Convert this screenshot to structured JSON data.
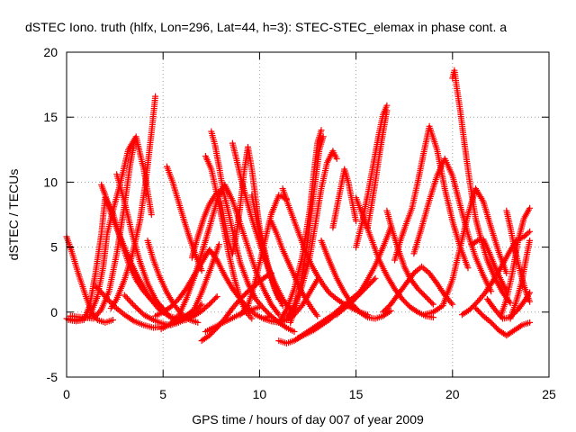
{
  "chart_data": {
    "type": "scatter",
    "title": "dSTEC Iono. truth (hlfx, Lon=296, Lat=44, h=3): STEC-STEC_elemax in phase cont. a",
    "xlabel": "GPS time / hours of day 007 of year 2009",
    "ylabel": "dSTEC  / TECUs",
    "xlim": [
      0,
      25
    ],
    "ylim": [
      -5,
      20
    ],
    "xticks": [
      0,
      5,
      10,
      15,
      20,
      25
    ],
    "yticks": [
      -5,
      0,
      5,
      10,
      15,
      20
    ],
    "xtick_labels": [
      "0",
      "5",
      "10",
      "15",
      "20",
      "25"
    ],
    "ytick_labels": [
      "-5",
      "0",
      "5",
      "10",
      "15",
      "20"
    ],
    "grid": true,
    "grid_style": "dotted",
    "marker": "+",
    "series_color": "#ff0000",
    "series": [
      {
        "x": [
          0.0,
          0.3,
          0.6,
          1.0,
          1.3,
          1.6,
          2.0,
          2.4
        ],
        "y": [
          5.8,
          4.5,
          3.0,
          1.2,
          0.0,
          -0.6,
          -0.8,
          -0.6
        ]
      },
      {
        "x": [
          0.1,
          0.5,
          0.9,
          1.2,
          1.5,
          1.8,
          2.0,
          2.4,
          2.8,
          3.2,
          3.6,
          4.0,
          4.5,
          5.0
        ],
        "y": [
          -0.6,
          -0.7,
          -0.6,
          0.5,
          3.0,
          6.0,
          8.8,
          7.6,
          5.6,
          3.8,
          2.5,
          1.6,
          0.8,
          0.3
        ]
      },
      {
        "x": [
          0.0,
          0.6,
          1.2,
          1.6,
          1.9,
          2.1,
          2.4,
          2.8,
          3.2,
          3.6,
          4.0,
          4.4
        ],
        "y": [
          -0.5,
          -0.6,
          -0.3,
          1.2,
          3.5,
          6.0,
          7.8,
          10.0,
          12.5,
          13.5,
          11.0,
          7.5
        ]
      },
      {
        "x": [
          0.2,
          0.8,
          1.4,
          1.8,
          2.2,
          2.6,
          3.0,
          3.3,
          3.5
        ],
        "y": [
          -0.3,
          -0.4,
          -0.5,
          0.2,
          1.6,
          4.5,
          8.2,
          11.4,
          13.0
        ]
      },
      {
        "x": [
          1.8,
          2.0,
          2.3,
          2.8,
          3.3,
          3.8,
          4.3,
          4.8,
          5.3,
          5.8,
          6.2,
          6.6,
          7.0,
          7.5,
          7.9
        ],
        "y": [
          9.8,
          9.0,
          7.6,
          5.7,
          3.9,
          2.4,
          1.1,
          0.2,
          -0.3,
          -0.5,
          -0.3,
          0.2,
          1.5,
          3.5,
          5.2
        ]
      },
      {
        "x": [
          1.5,
          2.0,
          2.5,
          3.0,
          3.5,
          4.0,
          4.5,
          5.0,
          5.5,
          6.0,
          6.5
        ],
        "y": [
          2.0,
          1.2,
          0.4,
          -0.2,
          -0.7,
          -1.0,
          -1.2,
          -1.1,
          -0.9,
          -0.5,
          0.0
        ]
      },
      {
        "x": [
          2.3,
          2.6,
          3.0,
          3.4,
          3.8,
          4.1,
          4.4,
          4.6
        ],
        "y": [
          0.3,
          1.0,
          2.5,
          4.4,
          7.0,
          10.0,
          13.8,
          16.6
        ]
      },
      {
        "x": [
          2.6,
          3.0,
          3.4,
          3.8,
          4.2,
          4.6,
          5.0,
          5.4,
          5.8,
          6.2,
          6.6,
          7.0,
          7.4,
          7.8
        ],
        "y": [
          10.6,
          8.5,
          6.0,
          3.9,
          2.2,
          1.0,
          0.2,
          -0.4,
          -0.7,
          -0.6,
          -0.3,
          0.1,
          0.6,
          1.2
        ]
      },
      {
        "x": [
          3.0,
          3.5,
          4.0,
          4.5,
          5.0,
          5.4,
          5.8,
          6.2,
          6.6,
          7.0
        ],
        "y": [
          1.3,
          0.5,
          -0.2,
          -0.6,
          -0.9,
          -1.0,
          -0.8,
          -0.5,
          0.0,
          0.6
        ]
      },
      {
        "x": [
          4.2,
          4.5,
          4.8,
          5.2,
          5.6,
          6.0,
          6.4,
          6.8
        ],
        "y": [
          5.5,
          4.0,
          2.8,
          1.5,
          0.5,
          -0.2,
          -0.6,
          -0.8
        ]
      },
      {
        "x": [
          4.6,
          5.0,
          5.4,
          5.8,
          6.2,
          6.6,
          7.0,
          7.4,
          7.8,
          8.2,
          8.6,
          9.0,
          9.4,
          9.8,
          10.2,
          10.6
        ],
        "y": [
          -0.3,
          0.0,
          0.4,
          1.0,
          1.8,
          2.8,
          3.8,
          4.8,
          4.0,
          2.8,
          1.8,
          1.0,
          0.3,
          -0.2,
          -0.5,
          -0.3
        ]
      },
      {
        "x": [
          5.2,
          5.5,
          5.8,
          6.1,
          6.4,
          6.7,
          7.0
        ],
        "y": [
          11.2,
          10.0,
          8.5,
          7.0,
          5.6,
          4.3,
          3.2
        ]
      },
      {
        "x": [
          4.9,
          5.3,
          5.8,
          6.2,
          6.6,
          7.0,
          7.4,
          7.8,
          8.2,
          8.6,
          9.0,
          9.4,
          9.8,
          10.2,
          10.6,
          11.0
        ],
        "y": [
          -1.3,
          -1.0,
          -0.3,
          1.0,
          2.6,
          4.5,
          6.5,
          8.6,
          9.8,
          8.6,
          6.8,
          5.0,
          3.2,
          1.8,
          0.6,
          -0.2
        ]
      },
      {
        "x": [
          6.5,
          6.8,
          7.1,
          7.4,
          7.7,
          8.0
        ],
        "y": [
          4.2,
          5.8,
          7.2,
          8.3,
          9.0,
          9.4
        ]
      },
      {
        "x": [
          7.0,
          7.4,
          7.8,
          8.2,
          8.6,
          9.0,
          9.4,
          9.8,
          10.2,
          10.6
        ],
        "y": [
          -2.2,
          -1.8,
          -1.2,
          -0.5,
          0.3,
          1.0,
          1.6,
          2.1,
          2.6,
          3.0
        ]
      },
      {
        "x": [
          7.2,
          7.6,
          8.0,
          8.4,
          8.8,
          9.2,
          9.6,
          10.0
        ],
        "y": [
          -1.5,
          -1.2,
          -0.9,
          -0.6,
          -0.3,
          0.0,
          0.2,
          0.4
        ]
      },
      {
        "x": [
          7.5,
          7.7,
          7.9,
          8.1,
          8.4,
          8.7,
          9.0,
          9.4,
          9.8,
          10.2,
          10.6,
          11.0,
          11.4,
          11.8
        ],
        "y": [
          13.9,
          12.8,
          11.2,
          9.5,
          7.6,
          5.6,
          3.8,
          2.2,
          1.0,
          0.3,
          -0.3,
          -0.8,
          -1.2,
          -1.5
        ]
      },
      {
        "x": [
          7.2,
          7.5,
          7.8,
          8.1,
          8.4,
          8.7,
          9.0,
          9.3,
          9.6
        ],
        "y": [
          12.0,
          11.0,
          9.0,
          6.8,
          4.5,
          2.6,
          1.0,
          0.0,
          -0.5
        ]
      },
      {
        "x": [
          8.0,
          8.2,
          8.4,
          8.6,
          8.8,
          9.0,
          9.2,
          9.4,
          9.6,
          9.8,
          10.0,
          10.4,
          10.8,
          11.2
        ],
        "y": [
          8.5,
          6.8,
          5.4,
          4.5,
          6.0,
          8.2,
          10.8,
          12.7,
          11.0,
          8.7,
          6.5,
          3.8,
          1.8,
          0.5
        ]
      },
      {
        "x": [
          8.6,
          8.8,
          9.0,
          9.3,
          9.6,
          10.0,
          10.4,
          10.8,
          11.2,
          11.6
        ],
        "y": [
          13.0,
          11.8,
          10.5,
          8.8,
          7.2,
          5.3,
          3.6,
          2.2,
          1.0,
          0.2
        ]
      },
      {
        "x": [
          9.0,
          9.4,
          9.8,
          10.2,
          10.6,
          11.0,
          11.4
        ],
        "y": [
          -0.2,
          0.5,
          2.5,
          5.0,
          7.5,
          9.0,
          8.7
        ]
      },
      {
        "x": [
          9.6,
          9.8,
          10.0,
          10.2,
          10.4,
          10.6,
          10.8,
          11.0
        ],
        "y": [
          9.0,
          7.5,
          6.0,
          4.8,
          3.6,
          2.6,
          1.7,
          1.0
        ]
      },
      {
        "x": [
          10.2,
          10.6,
          11.0,
          11.4,
          11.8,
          12.2,
          12.6,
          13.0
        ],
        "y": [
          -0.5,
          -0.7,
          -0.8,
          -0.6,
          -0.2,
          0.5,
          1.5,
          2.5
        ]
      },
      {
        "x": [
          10.6,
          10.9,
          11.2,
          11.5,
          11.8,
          12.1,
          12.4,
          12.7,
          13.0
        ],
        "y": [
          7.0,
          6.0,
          4.8,
          3.8,
          2.8,
          1.8,
          1.0,
          0.3,
          -0.3
        ]
      },
      {
        "x": [
          11.2,
          11.5,
          11.8,
          12.1,
          12.4,
          12.7,
          13.0,
          13.3,
          13.6,
          14.0,
          14.4,
          14.8,
          15.2,
          15.6
        ],
        "y": [
          9.5,
          8.2,
          7.0,
          5.8,
          4.6,
          3.6,
          2.8,
          2.1,
          1.5,
          1.0,
          0.6,
          0.3,
          0.0,
          -0.2
        ]
      },
      {
        "x": [
          11.0,
          11.4,
          11.8,
          12.2,
          12.6,
          13.0,
          13.4,
          13.8,
          14.2,
          14.6,
          15.0,
          15.4
        ],
        "y": [
          -2.2,
          -2.4,
          -2.2,
          -1.8,
          -1.4,
          -1.0,
          -0.6,
          -0.2,
          0.3,
          0.8,
          1.3,
          1.8
        ]
      },
      {
        "x": [
          11.4,
          11.8,
          12.2,
          12.6,
          12.9,
          13.2,
          13.5,
          13.8,
          14.0
        ],
        "y": [
          -0.5,
          0.5,
          2.0,
          4.2,
          6.8,
          9.5,
          11.5,
          12.4,
          11.8
        ]
      },
      {
        "x": [
          11.0,
          11.4,
          11.8,
          12.2,
          12.6,
          12.8,
          13.0,
          13.2
        ],
        "y": [
          -0.8,
          0.2,
          1.8,
          4.2,
          7.8,
          10.5,
          13.0,
          14.0
        ]
      },
      {
        "x": [
          11.6,
          11.9,
          12.2,
          12.5,
          12.7,
          12.9,
          13.1,
          13.3
        ],
        "y": [
          -0.8,
          0.5,
          2.8,
          5.5,
          8.0,
          10.2,
          12.5,
          13.5
        ]
      },
      {
        "x": [
          12.0,
          12.4,
          12.8,
          13.2,
          13.6,
          14.0,
          14.4,
          14.8,
          15.2,
          15.6,
          16.0
        ],
        "y": [
          -2.0,
          -1.7,
          -1.4,
          -1.0,
          -0.6,
          -0.1,
          0.4,
          0.9,
          1.4,
          2.0,
          2.6
        ]
      },
      {
        "x": [
          13.2,
          13.6,
          14.0,
          14.4,
          14.8,
          15.2,
          15.6,
          16.0,
          16.4,
          16.8
        ],
        "y": [
          5.5,
          4.0,
          2.6,
          1.5,
          0.6,
          0.0,
          -0.4,
          -0.5,
          -0.3,
          0.1
        ]
      },
      {
        "x": [
          13.8,
          14.0,
          14.2,
          14.4,
          14.6,
          14.8,
          15.0
        ],
        "y": [
          6.5,
          8.0,
          9.5,
          11.0,
          10.0,
          8.5,
          7.0
        ]
      },
      {
        "x": [
          14.0,
          14.4,
          14.8,
          15.2,
          15.6,
          16.0,
          16.4,
          16.8
        ],
        "y": [
          -0.2,
          0.3,
          0.8,
          1.5,
          2.5,
          3.6,
          5.0,
          6.5
        ]
      },
      {
        "x": [
          15.0,
          15.3,
          15.6,
          15.9,
          16.2,
          16.6,
          17.0,
          17.4,
          17.8,
          18.2,
          18.6,
          19.0
        ],
        "y": [
          8.8,
          7.6,
          6.4,
          5.2,
          4.0,
          2.8,
          1.8,
          1.0,
          0.4,
          0.0,
          -0.3,
          -0.4
        ]
      },
      {
        "x": [
          15.0,
          15.3,
          15.6,
          15.9,
          16.2,
          16.4,
          16.6
        ],
        "y": [
          5.0,
          6.8,
          9.0,
          11.4,
          13.8,
          15.2,
          15.9
        ]
      },
      {
        "x": [
          15.6,
          15.8,
          16.0,
          16.2,
          16.4,
          16.6
        ],
        "y": [
          6.5,
          8.2,
          10.0,
          12.0,
          13.8,
          15.5
        ]
      },
      {
        "x": [
          16.6,
          16.9,
          17.2,
          17.5,
          17.8,
          18.2,
          18.6,
          19.0
        ],
        "y": [
          7.8,
          6.2,
          4.8,
          3.5,
          2.6,
          1.8,
          1.2,
          0.6
        ]
      },
      {
        "x": [
          16.4,
          16.8,
          17.2,
          17.6,
          18.0,
          18.4,
          18.8,
          19.2,
          19.6,
          20.0
        ],
        "y": [
          0.0,
          0.6,
          1.4,
          2.2,
          3.0,
          3.5,
          3.0,
          2.2,
          1.3,
          0.6
        ]
      },
      {
        "x": [
          17.0,
          17.3,
          17.6,
          17.9,
          18.2,
          18.5,
          18.8,
          19.2,
          19.6,
          20.0,
          20.4,
          20.8
        ],
        "y": [
          4.0,
          5.5,
          6.8,
          8.0,
          10.0,
          12.2,
          14.3,
          12.5,
          9.5,
          7.0,
          5.0,
          3.4
        ]
      },
      {
        "x": [
          18.0,
          18.4,
          18.8,
          19.2,
          19.6,
          20.0,
          20.4,
          20.8,
          21.2,
          21.6,
          22.0
        ],
        "y": [
          4.5,
          6.5,
          8.6,
          10.5,
          11.8,
          10.5,
          8.2,
          6.0,
          4.2,
          2.8,
          1.6
        ]
      },
      {
        "x": [
          18.5,
          19.0,
          19.5,
          20.0,
          20.4,
          20.8,
          21.2,
          21.6,
          22.0,
          22.4,
          22.8
        ],
        "y": [
          -0.2,
          0.0,
          0.5,
          2.5,
          5.0,
          7.5,
          9.5,
          8.5,
          6.5,
          4.6,
          3.0
        ]
      },
      {
        "x": [
          20.0,
          20.1,
          20.2,
          20.4,
          20.6,
          20.8,
          21.0,
          21.2,
          21.5,
          21.8,
          22.2,
          22.6,
          23.0
        ],
        "y": [
          18.0,
          18.6,
          17.5,
          15.5,
          13.2,
          11.0,
          9.0,
          7.2,
          5.5,
          4.0,
          2.6,
          1.5,
          0.7
        ]
      },
      {
        "x": [
          20.5,
          20.9,
          21.3,
          21.7,
          22.1,
          22.5,
          22.9,
          23.3,
          23.7,
          24.0
        ],
        "y": [
          -0.2,
          0.2,
          0.8,
          1.5,
          2.4,
          3.4,
          4.5,
          5.5,
          5.8,
          6.2
        ]
      },
      {
        "x": [
          21.0,
          21.3,
          21.6,
          21.9,
          22.2,
          22.5,
          22.8
        ],
        "y": [
          5.2,
          5.5,
          5.6,
          4.6,
          3.5,
          2.5,
          1.6
        ]
      },
      {
        "x": [
          21.2,
          21.6,
          22.0,
          22.4,
          22.8,
          23.2,
          23.6,
          24.0
        ],
        "y": [
          0.3,
          -0.3,
          -0.8,
          -1.4,
          -1.8,
          -1.4,
          -1.0,
          -0.8
        ]
      },
      {
        "x": [
          21.8,
          22.2,
          22.6,
          23.0,
          23.4,
          23.8,
          24.0
        ],
        "y": [
          1.0,
          0.2,
          -0.5,
          -0.4,
          0.2,
          1.0,
          1.5
        ]
      },
      {
        "x": [
          22.5,
          22.8,
          23.1,
          23.4,
          23.7,
          24.0
        ],
        "y": [
          -0.3,
          1.0,
          3.0,
          5.5,
          7.2,
          8.0
        ]
      },
      {
        "x": [
          22.8,
          23.0,
          23.2,
          23.4,
          23.6,
          23.8,
          24.0
        ],
        "y": [
          7.8,
          6.5,
          5.0,
          3.8,
          2.6,
          1.6,
          0.8
        ]
      },
      {
        "x": [
          23.0,
          23.3,
          23.6,
          23.8,
          24.0
        ],
        "y": [
          -0.5,
          0.8,
          2.4,
          4.0,
          5.5
        ]
      }
    ]
  }
}
